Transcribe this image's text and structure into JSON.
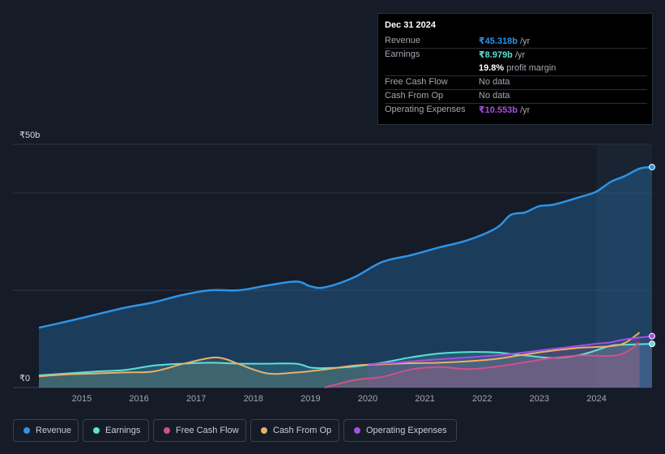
{
  "tooltip": {
    "date": "Dec 31 2024",
    "rows": [
      {
        "label": "Revenue",
        "value": "₹45.318b",
        "unit": " /yr",
        "color": "#2e93e6"
      },
      {
        "label": "Earnings",
        "value": "₹8.979b",
        "unit": " /yr",
        "color": "#5ce1d2"
      },
      {
        "label": "",
        "value": "19.8%",
        "unit": " profit margin",
        "color": "#ffffff"
      },
      {
        "label": "Free Cash Flow",
        "value": "No data",
        "unit": "",
        "color": "#6f747c"
      },
      {
        "label": "Cash From Op",
        "value": "No data",
        "unit": "",
        "color": "#6f747c"
      },
      {
        "label": "Operating Expenses",
        "value": "₹10.553b",
        "unit": " /yr",
        "color": "#a64fe0"
      }
    ]
  },
  "chart_data": {
    "type": "line",
    "title": "",
    "ylabel": "",
    "xlabel": "",
    "ylim": [
      0,
      50
    ],
    "y_tick_labels": [
      {
        "value": 50,
        "label": "₹50b"
      },
      {
        "value": 0,
        "label": "₹0"
      }
    ],
    "x_ticks": [
      2015,
      2016,
      2017,
      2018,
      2019,
      2020,
      2021,
      2022,
      2023,
      2024
    ],
    "x_range": [
      2014.25,
      2024.97
    ],
    "forecast_start": 2024.0,
    "series": [
      {
        "name": "Revenue",
        "color": "#2e93e6",
        "fill": true,
        "marker": true,
        "points": [
          [
            2014.25,
            12.3
          ],
          [
            2014.75,
            13.6
          ],
          [
            2015.25,
            15.0
          ],
          [
            2015.75,
            16.4
          ],
          [
            2016.25,
            17.5
          ],
          [
            2016.75,
            19.0
          ],
          [
            2017.25,
            20.0
          ],
          [
            2017.75,
            20.0
          ],
          [
            2018.25,
            21.0
          ],
          [
            2018.75,
            21.8
          ],
          [
            2019.0,
            20.8
          ],
          [
            2019.25,
            20.6
          ],
          [
            2019.75,
            22.6
          ],
          [
            2020.25,
            25.8
          ],
          [
            2020.75,
            27.2
          ],
          [
            2021.25,
            28.8
          ],
          [
            2021.75,
            30.3
          ],
          [
            2022.25,
            32.8
          ],
          [
            2022.5,
            35.5
          ],
          [
            2022.75,
            36.0
          ],
          [
            2023.0,
            37.3
          ],
          [
            2023.25,
            37.6
          ],
          [
            2023.75,
            39.3
          ],
          [
            2024.0,
            40.3
          ],
          [
            2024.25,
            42.3
          ],
          [
            2024.5,
            43.5
          ],
          [
            2024.75,
            45.0
          ],
          [
            2024.97,
            45.318
          ]
        ]
      },
      {
        "name": "Earnings",
        "color": "#5ce1d2",
        "fill": true,
        "marker": true,
        "points": [
          [
            2014.25,
            2.5
          ],
          [
            2014.75,
            2.9
          ],
          [
            2015.25,
            3.3
          ],
          [
            2015.75,
            3.6
          ],
          [
            2016.25,
            4.5
          ],
          [
            2016.75,
            4.9
          ],
          [
            2017.25,
            5.1
          ],
          [
            2017.75,
            4.9
          ],
          [
            2018.25,
            4.9
          ],
          [
            2018.75,
            4.9
          ],
          [
            2019.0,
            4.1
          ],
          [
            2019.25,
            4.0
          ],
          [
            2019.75,
            4.3
          ],
          [
            2020.25,
            5.1
          ],
          [
            2020.75,
            6.2
          ],
          [
            2021.25,
            7.0
          ],
          [
            2021.75,
            7.3
          ],
          [
            2022.25,
            7.2
          ],
          [
            2022.75,
            6.6
          ],
          [
            2023.25,
            6.1
          ],
          [
            2023.75,
            6.8
          ],
          [
            2024.25,
            8.6
          ],
          [
            2024.5,
            8.8
          ],
          [
            2024.97,
            8.979
          ]
        ]
      },
      {
        "name": "Free Cash Flow",
        "color": "#d0508a",
        "fill": true,
        "marker": false,
        "points": [
          [
            2019.25,
            0.0
          ],
          [
            2019.75,
            1.5
          ],
          [
            2020.25,
            2.2
          ],
          [
            2020.75,
            3.7
          ],
          [
            2021.25,
            4.2
          ],
          [
            2021.75,
            3.8
          ],
          [
            2022.25,
            4.3
          ],
          [
            2022.75,
            5.2
          ],
          [
            2023.25,
            6.1
          ],
          [
            2023.75,
            6.6
          ],
          [
            2024.25,
            6.5
          ],
          [
            2024.5,
            7.2
          ],
          [
            2024.75,
            9.2
          ]
        ]
      },
      {
        "name": "Cash From Op",
        "color": "#e9b06b",
        "fill": true,
        "marker": false,
        "points": [
          [
            2014.25,
            2.3
          ],
          [
            2014.75,
            2.7
          ],
          [
            2015.25,
            2.9
          ],
          [
            2015.75,
            3.1
          ],
          [
            2016.25,
            3.3
          ],
          [
            2016.75,
            4.8
          ],
          [
            2017.25,
            6.1
          ],
          [
            2017.5,
            5.9
          ],
          [
            2017.75,
            4.8
          ],
          [
            2018.25,
            2.9
          ],
          [
            2018.75,
            3.1
          ],
          [
            2019.25,
            3.7
          ],
          [
            2019.75,
            4.5
          ],
          [
            2020.25,
            4.8
          ],
          [
            2020.75,
            5.0
          ],
          [
            2021.25,
            5.1
          ],
          [
            2021.75,
            5.4
          ],
          [
            2022.25,
            5.9
          ],
          [
            2022.75,
            6.8
          ],
          [
            2023.25,
            7.6
          ],
          [
            2023.75,
            8.2
          ],
          [
            2024.25,
            8.5
          ],
          [
            2024.5,
            9.2
          ],
          [
            2024.75,
            11.3
          ]
        ]
      },
      {
        "name": "Operating Expenses",
        "color": "#a64fe0",
        "fill": true,
        "marker": true,
        "points": [
          [
            2020.0,
            4.8
          ],
          [
            2020.5,
            5.1
          ],
          [
            2021.0,
            5.6
          ],
          [
            2021.5,
            6.0
          ],
          [
            2022.0,
            6.4
          ],
          [
            2022.5,
            6.9
          ],
          [
            2023.0,
            7.6
          ],
          [
            2023.5,
            8.3
          ],
          [
            2024.0,
            9.0
          ],
          [
            2024.25,
            9.3
          ],
          [
            2024.5,
            9.9
          ],
          [
            2024.97,
            10.553
          ]
        ]
      }
    ]
  },
  "legend": [
    {
      "label": "Revenue",
      "color": "#2e93e6"
    },
    {
      "label": "Earnings",
      "color": "#5ce1d2"
    },
    {
      "label": "Free Cash Flow",
      "color": "#d0508a"
    },
    {
      "label": "Cash From Op",
      "color": "#e9b06b"
    },
    {
      "label": "Operating Expenses",
      "color": "#a64fe0"
    }
  ]
}
